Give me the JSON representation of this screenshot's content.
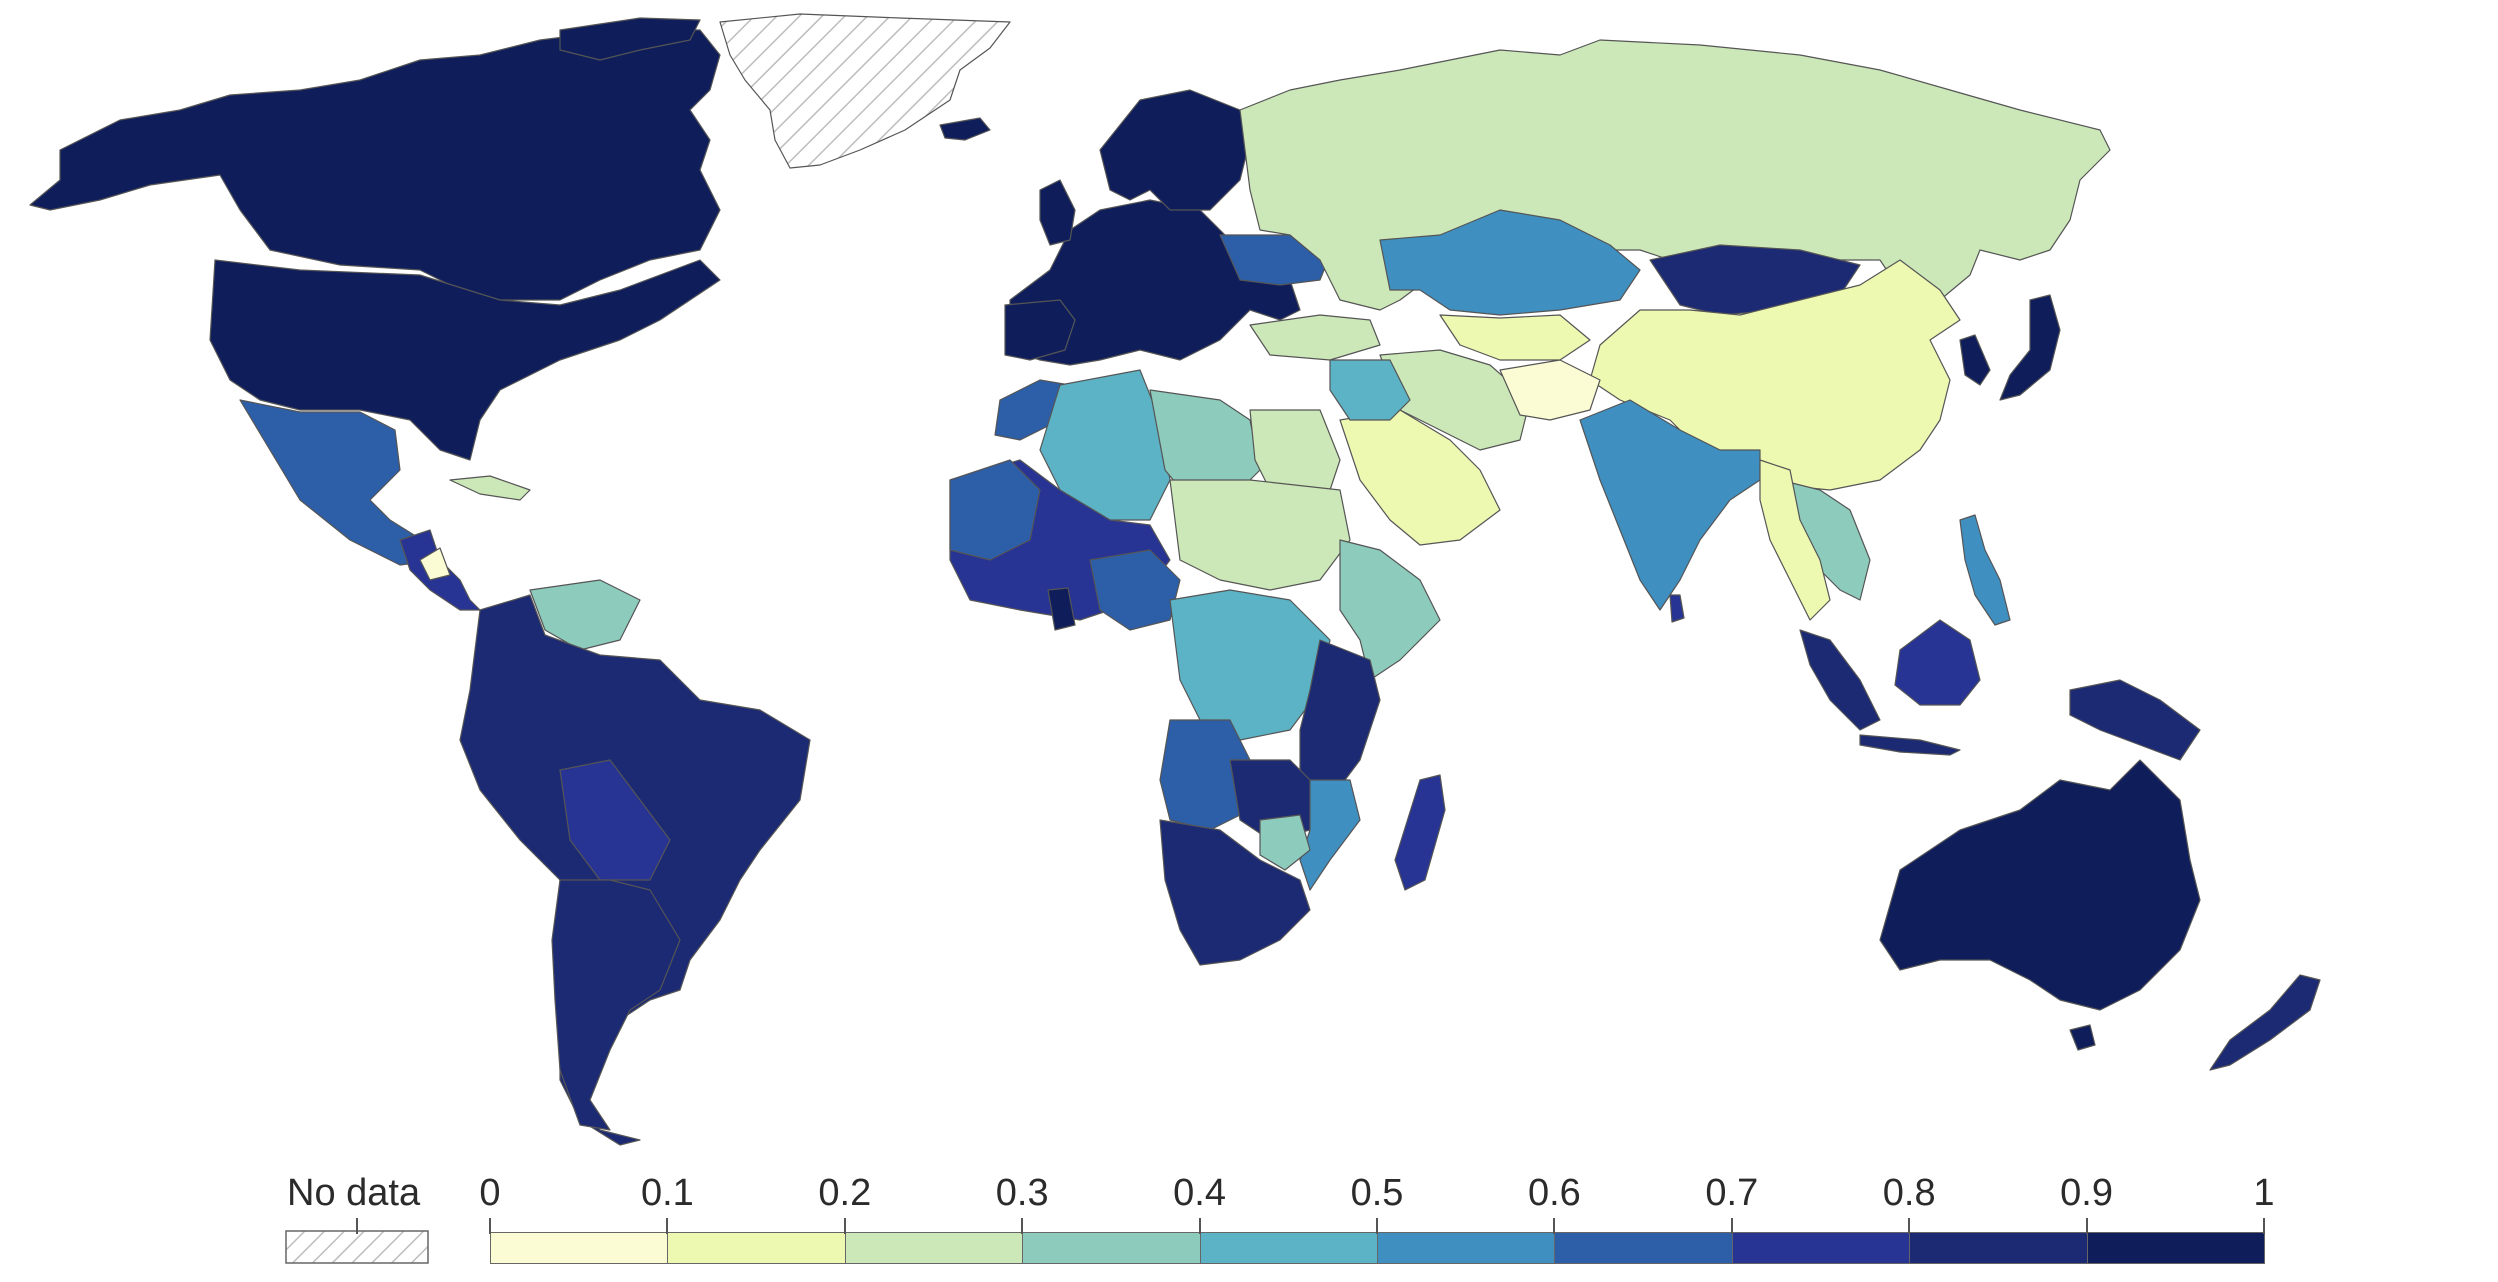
{
  "legend": {
    "no_data_label": "No data",
    "tick_labels": [
      "0",
      "0.1",
      "0.2",
      "0.3",
      "0.4",
      "0.5",
      "0.6",
      "0.7",
      "0.8",
      "0.9",
      "1"
    ],
    "bins": [
      {
        "range": [
          0,
          0.1
        ],
        "color": "#fbfcd4"
      },
      {
        "range": [
          0.1,
          0.2
        ],
        "color": "#edf8b1"
      },
      {
        "range": [
          0.2,
          0.3
        ],
        "color": "#cce8b8"
      },
      {
        "range": [
          0.3,
          0.4
        ],
        "color": "#8dcbbc"
      },
      {
        "range": [
          0.4,
          0.5
        ],
        "color": "#5cb3c5"
      },
      {
        "range": [
          0.5,
          0.6
        ],
        "color": "#3f8fc0"
      },
      {
        "range": [
          0.6,
          0.7
        ],
        "color": "#2d5ea8"
      },
      {
        "range": [
          0.7,
          0.8
        ],
        "color": "#283494"
      },
      {
        "range": [
          0.8,
          0.9
        ],
        "color": "#1c2a74"
      },
      {
        "range": [
          0.9,
          1
        ],
        "color": "#0f1e5a"
      }
    ]
  },
  "colors": {
    "no_data_hatch": "#bdbdbd",
    "border": "#555555",
    "ocean": "#ffffff"
  }
}
